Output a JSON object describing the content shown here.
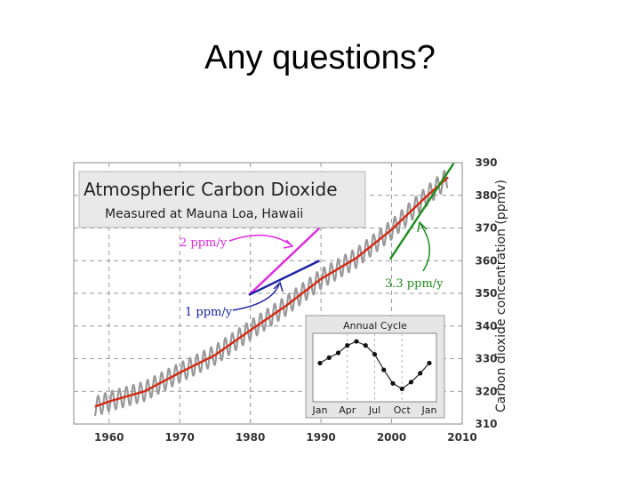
{
  "slide": {
    "title": "Any questions?"
  },
  "chart_data": {
    "type": "line",
    "title": "Atmospheric Carbon Dioxide",
    "subtitle": "Measured at Mauna Loa, Hawaii",
    "xlabel": "",
    "ylabel": "Carbon dioxide concentration (ppmv)",
    "xlim": [
      1955,
      2010
    ],
    "ylim": [
      310,
      390
    ],
    "xticks": [
      "1960",
      "1970",
      "1980",
      "1990",
      "2000",
      "2010"
    ],
    "yticks": [
      "310",
      "320",
      "330",
      "340",
      "350",
      "360",
      "370",
      "380",
      "390"
    ],
    "grid": true,
    "y_axis_side": "right",
    "series": [
      {
        "kind": "monthly-raw",
        "color": "#9a9a9a",
        "seasonal_amplitude": 3,
        "x": [
          1958,
          1960,
          1965,
          1970,
          1975,
          1980,
          1985,
          1990,
          1995,
          2000,
          2005,
          2008
        ],
        "values": [
          315.3,
          316.9,
          320.0,
          325.7,
          331.1,
          338.7,
          346.1,
          354.4,
          360.8,
          369.5,
          379.8,
          385.5
        ]
      },
      {
        "kind": "annual-mean",
        "color": "#d42a14",
        "x": [
          1958,
          1960,
          1965,
          1970,
          1975,
          1980,
          1985,
          1990,
          1995,
          2000,
          2005,
          2008
        ],
        "values": [
          315.3,
          316.9,
          320.0,
          325.7,
          331.1,
          338.7,
          346.1,
          354.4,
          360.8,
          369.5,
          379.8,
          385.5
        ]
      }
    ],
    "trend_lines": [
      {
        "label": "2 ppm/y",
        "color": "#e027e0",
        "x": [
          1979.8,
          1989.8
        ],
        "y": [
          349.5,
          370.0
        ]
      },
      {
        "label": "1 ppm/y",
        "color": "#1a20a8",
        "x": [
          1979.8,
          1989.8
        ],
        "y": [
          349.5,
          360.0
        ]
      },
      {
        "label": "3.3 ppm/y",
        "color": "#1e8c1e",
        "x": [
          1999.8,
          2008.8
        ],
        "y": [
          360.5,
          389.8
        ]
      }
    ],
    "inset": {
      "title": "Annual Cycle",
      "x_labels": [
        "Jan",
        "Apr",
        "Jul",
        "Oct",
        "Jan"
      ],
      "values": [
        0.4,
        1.2,
        1.9,
        3.0,
        3.6,
        3.0,
        1.7,
        -0.6,
        -2.6,
        -3.4,
        -2.4,
        -1.1,
        0.4
      ]
    }
  }
}
